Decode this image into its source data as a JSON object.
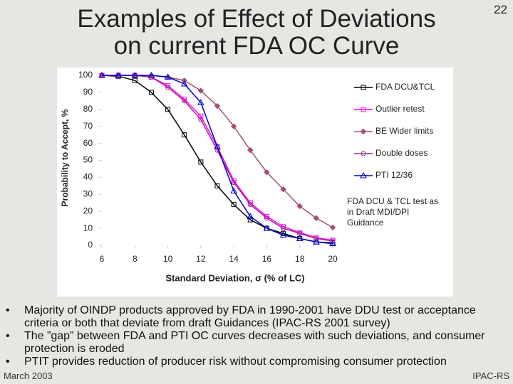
{
  "slide": {
    "title_lines": [
      "Examples of Effect of Deviations",
      "on current FDA OC Curve"
    ],
    "page_number": "22",
    "bullets": [
      "Majority of OINDP products approved by FDA in 1990-2001 have DDU test or acceptance criteria or both that deviate from draft Guidances (IPAC-RS 2001 survey)",
      "The ”gap” between FDA and PTI OC curves decreases with such deviations, and consumer protection is eroded",
      "PTIT provides reduction of producer risk without compromising consumer protection"
    ],
    "footer_left": "March 2003",
    "footer_right": "IPAC-RS"
  },
  "chart_data": {
    "type": "line",
    "x_label": "Standard Deviation, σ (% of LC)",
    "y_label": "Probability to Accept, %",
    "annotation": "FDA DCU & TCL test as in Draft MDI/DPI Guidance",
    "x": [
      6,
      7,
      8,
      9,
      10,
      11,
      12,
      13,
      14,
      15,
      16,
      17,
      18,
      19,
      20
    ],
    "xlim": [
      6,
      20
    ],
    "xticks": [
      6,
      8,
      10,
      12,
      14,
      16,
      18,
      20
    ],
    "ylim": [
      0,
      100
    ],
    "yticks": [
      0,
      10,
      20,
      30,
      40,
      50,
      60,
      70,
      80,
      90,
      100
    ],
    "series": [
      {
        "name": "FDA DCU&TCL",
        "color": "#000000",
        "marker": "square",
        "values": [
          100,
          99.5,
          97,
          90,
          80,
          65,
          49,
          35,
          24,
          15,
          10,
          7,
          4,
          2,
          1.5
        ]
      },
      {
        "name": "Outlier retest",
        "color": "#ff00ff",
        "marker": "square",
        "values": [
          100,
          100,
          100,
          99,
          94,
          86,
          76,
          58,
          38,
          25,
          17,
          11,
          7.5,
          4.5,
          3
        ]
      },
      {
        "name": "BE Wider limits",
        "color": "#a05078",
        "marker": "diamond",
        "values": [
          100,
          100,
          100,
          100,
          99,
          97,
          91,
          82,
          70,
          56,
          43,
          33,
          23,
          16,
          10.5
        ]
      },
      {
        "name": "Double doses",
        "color": "#a02890",
        "marker": "circle",
        "values": [
          100,
          100,
          100,
          99,
          93,
          85,
          74,
          56,
          37,
          24,
          16,
          10,
          7,
          4,
          2.5
        ]
      },
      {
        "name": "PTI 12/36",
        "color": "#0000cc",
        "marker": "triangle",
        "values": [
          100,
          100,
          100,
          100,
          99,
          95,
          84,
          58,
          32,
          17,
          10,
          6,
          4,
          2,
          1
        ]
      }
    ]
  }
}
